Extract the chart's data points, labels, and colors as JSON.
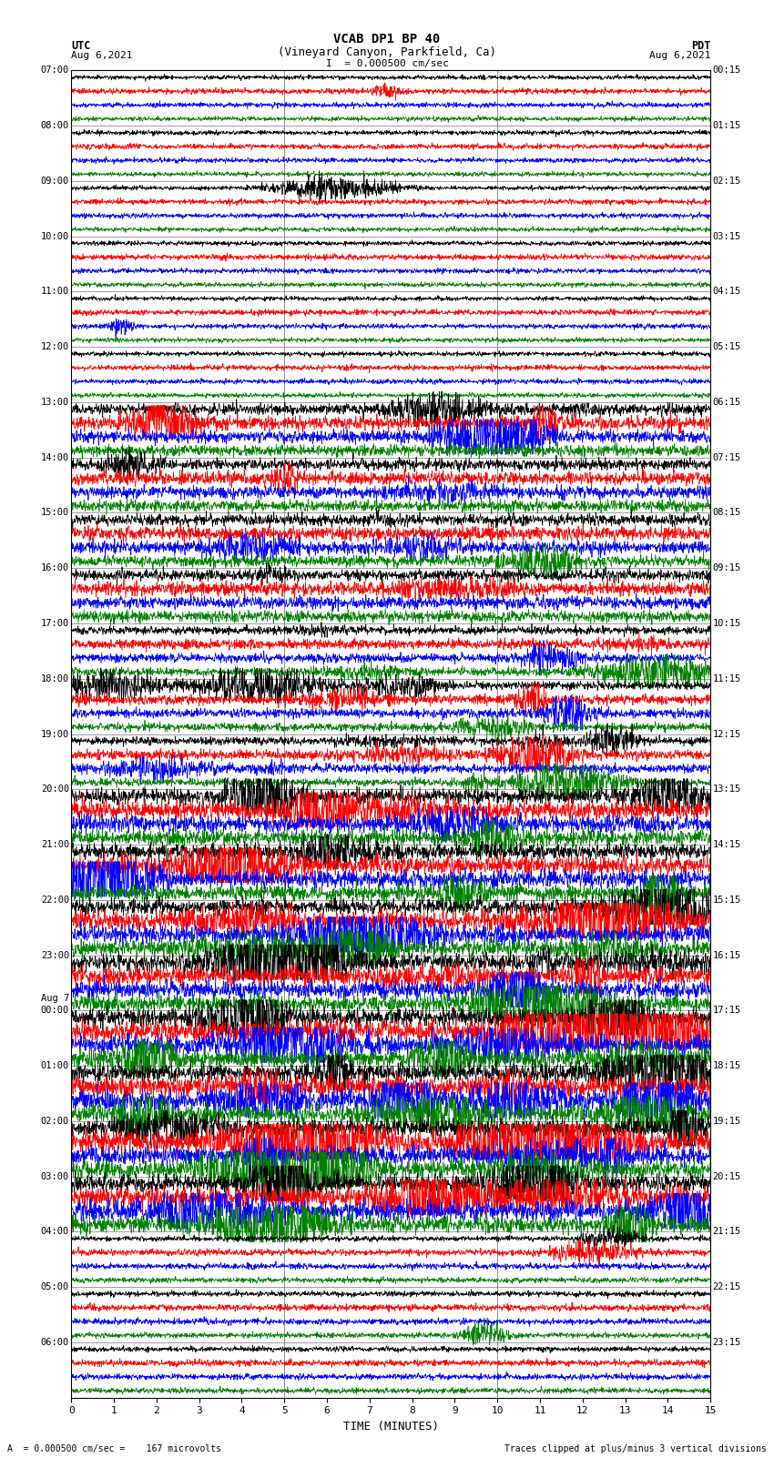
{
  "title_line1": "VCAB DP1 BP 40",
  "title_line2": "(Vineyard Canyon, Parkfield, Ca)",
  "scale_label": "I  = 0.000500 cm/sec",
  "utc_label": "UTC",
  "utc_date": "Aug 6,2021",
  "pdt_label": "PDT",
  "pdt_date": "Aug 6,2021",
  "xlabel": "TIME (MINUTES)",
  "footer_left": "A  = 0.000500 cm/sec =    167 microvolts",
  "footer_right": "Traces clipped at plus/minus 3 vertical divisions",
  "xmin": 0,
  "xmax": 15,
  "xticks": [
    0,
    1,
    2,
    3,
    4,
    5,
    6,
    7,
    8,
    9,
    10,
    11,
    12,
    13,
    14,
    15
  ],
  "background_color": "#ffffff",
  "trace_colors": [
    "#000000",
    "#ff0000",
    "#0000ff",
    "#008000"
  ],
  "figwidth": 8.5,
  "figheight": 16.13,
  "dpi": 100,
  "grid_color": "#777777",
  "grid_linewidth": 0.5,
  "vline_x": [
    5,
    10
  ],
  "vline_color": "#777777",
  "vline_lw": 0.6,
  "utc_times_full": [
    "07:00",
    "08:00",
    "09:00",
    "10:00",
    "11:00",
    "12:00",
    "13:00",
    "14:00",
    "15:00",
    "16:00",
    "17:00",
    "18:00",
    "19:00",
    "20:00",
    "21:00",
    "22:00",
    "23:00",
    "Aug 7\n00:00",
    "01:00",
    "02:00",
    "03:00",
    "04:00",
    "05:00",
    "06:00"
  ],
  "pdt_times_full": [
    "00:15",
    "01:15",
    "02:15",
    "03:15",
    "04:15",
    "05:15",
    "06:15",
    "07:15",
    "08:15",
    "09:15",
    "10:15",
    "11:15",
    "12:15",
    "13:15",
    "14:15",
    "15:15",
    "16:15",
    "17:15",
    "18:15",
    "19:15",
    "20:15",
    "21:15",
    "22:15",
    "23:15"
  ]
}
